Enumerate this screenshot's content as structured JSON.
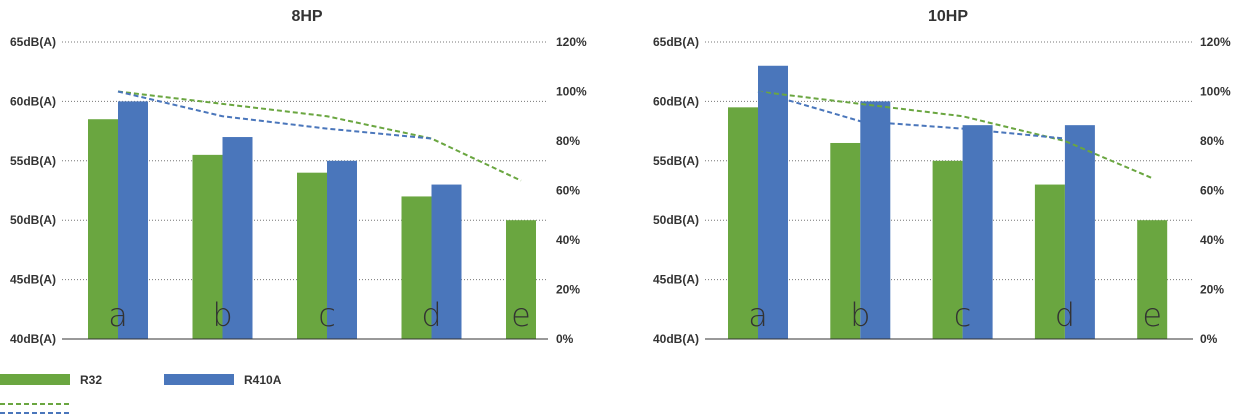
{
  "colors": {
    "r32": "#6aa640",
    "r410a": "#4a76bb",
    "grid": "#777777",
    "axis": "#333333"
  },
  "legend": [
    {
      "label": "R32",
      "color": "#6aa640",
      "style": "bar"
    },
    {
      "label": "R410A",
      "color": "#4a76bb",
      "style": "bar"
    },
    {
      "label": "",
      "color": "#6aa640",
      "style": "dashed-line"
    },
    {
      "label": "",
      "color": "#4a76bb",
      "style": "dashed-line"
    }
  ],
  "chart_data": [
    {
      "type": "bar",
      "title": "8HP",
      "categories": [
        "a",
        "b",
        "c",
        "d",
        "e"
      ],
      "ylim": [
        40,
        65
      ],
      "y_tick_labels": [
        "40dB(A)",
        "45dB(A)",
        "50dB(A)",
        "55dB(A)",
        "60dB(A)",
        "65dB(A)"
      ],
      "y2lim": [
        0,
        120
      ],
      "y2_tick_labels": [
        "0%",
        "20%",
        "40%",
        "60%",
        "80%",
        "100%",
        "120%"
      ],
      "grid": true,
      "series": [
        {
          "name": "R32",
          "axis": "left",
          "type": "bar",
          "values": [
            58.5,
            55.5,
            54,
            52,
            50
          ]
        },
        {
          "name": "R410A",
          "axis": "left",
          "type": "bar",
          "values": [
            60,
            57,
            55,
            53,
            null
          ]
        },
        {
          "axis": "right",
          "type": "line",
          "style": "dashed",
          "color": "#6aa640",
          "values": [
            100,
            95,
            90,
            81,
            64
          ]
        },
        {
          "axis": "right",
          "type": "line",
          "style": "dashed",
          "color": "#4a76bb",
          "values": [
            100,
            90,
            85,
            81,
            null
          ]
        }
      ]
    },
    {
      "type": "bar",
      "title": "10HP",
      "categories": [
        "a",
        "b",
        "c",
        "d",
        "e"
      ],
      "ylim": [
        40,
        65
      ],
      "y_tick_labels": [
        "40dB(A)",
        "45dB(A)",
        "50dB(A)",
        "55dB(A)",
        "60dB(A)",
        "65dB(A)"
      ],
      "y2lim": [
        0,
        120
      ],
      "y2_tick_labels": [
        "0%",
        "20%",
        "40%",
        "60%",
        "80%",
        "100%",
        "120%"
      ],
      "grid": true,
      "series": [
        {
          "name": "R32",
          "axis": "left",
          "type": "bar",
          "values": [
            59.5,
            56.5,
            55,
            53,
            50
          ]
        },
        {
          "name": "R410A",
          "axis": "left",
          "type": "bar",
          "values": [
            63,
            60,
            58,
            58,
            null
          ]
        },
        {
          "axis": "right",
          "type": "line",
          "style": "dashed",
          "color": "#6aa640",
          "values": [
            100,
            95,
            90,
            80,
            65
          ]
        },
        {
          "axis": "right",
          "type": "line",
          "style": "dashed",
          "color": "#4a76bb",
          "values": [
            100,
            88,
            85,
            81,
            null
          ]
        }
      ]
    }
  ]
}
